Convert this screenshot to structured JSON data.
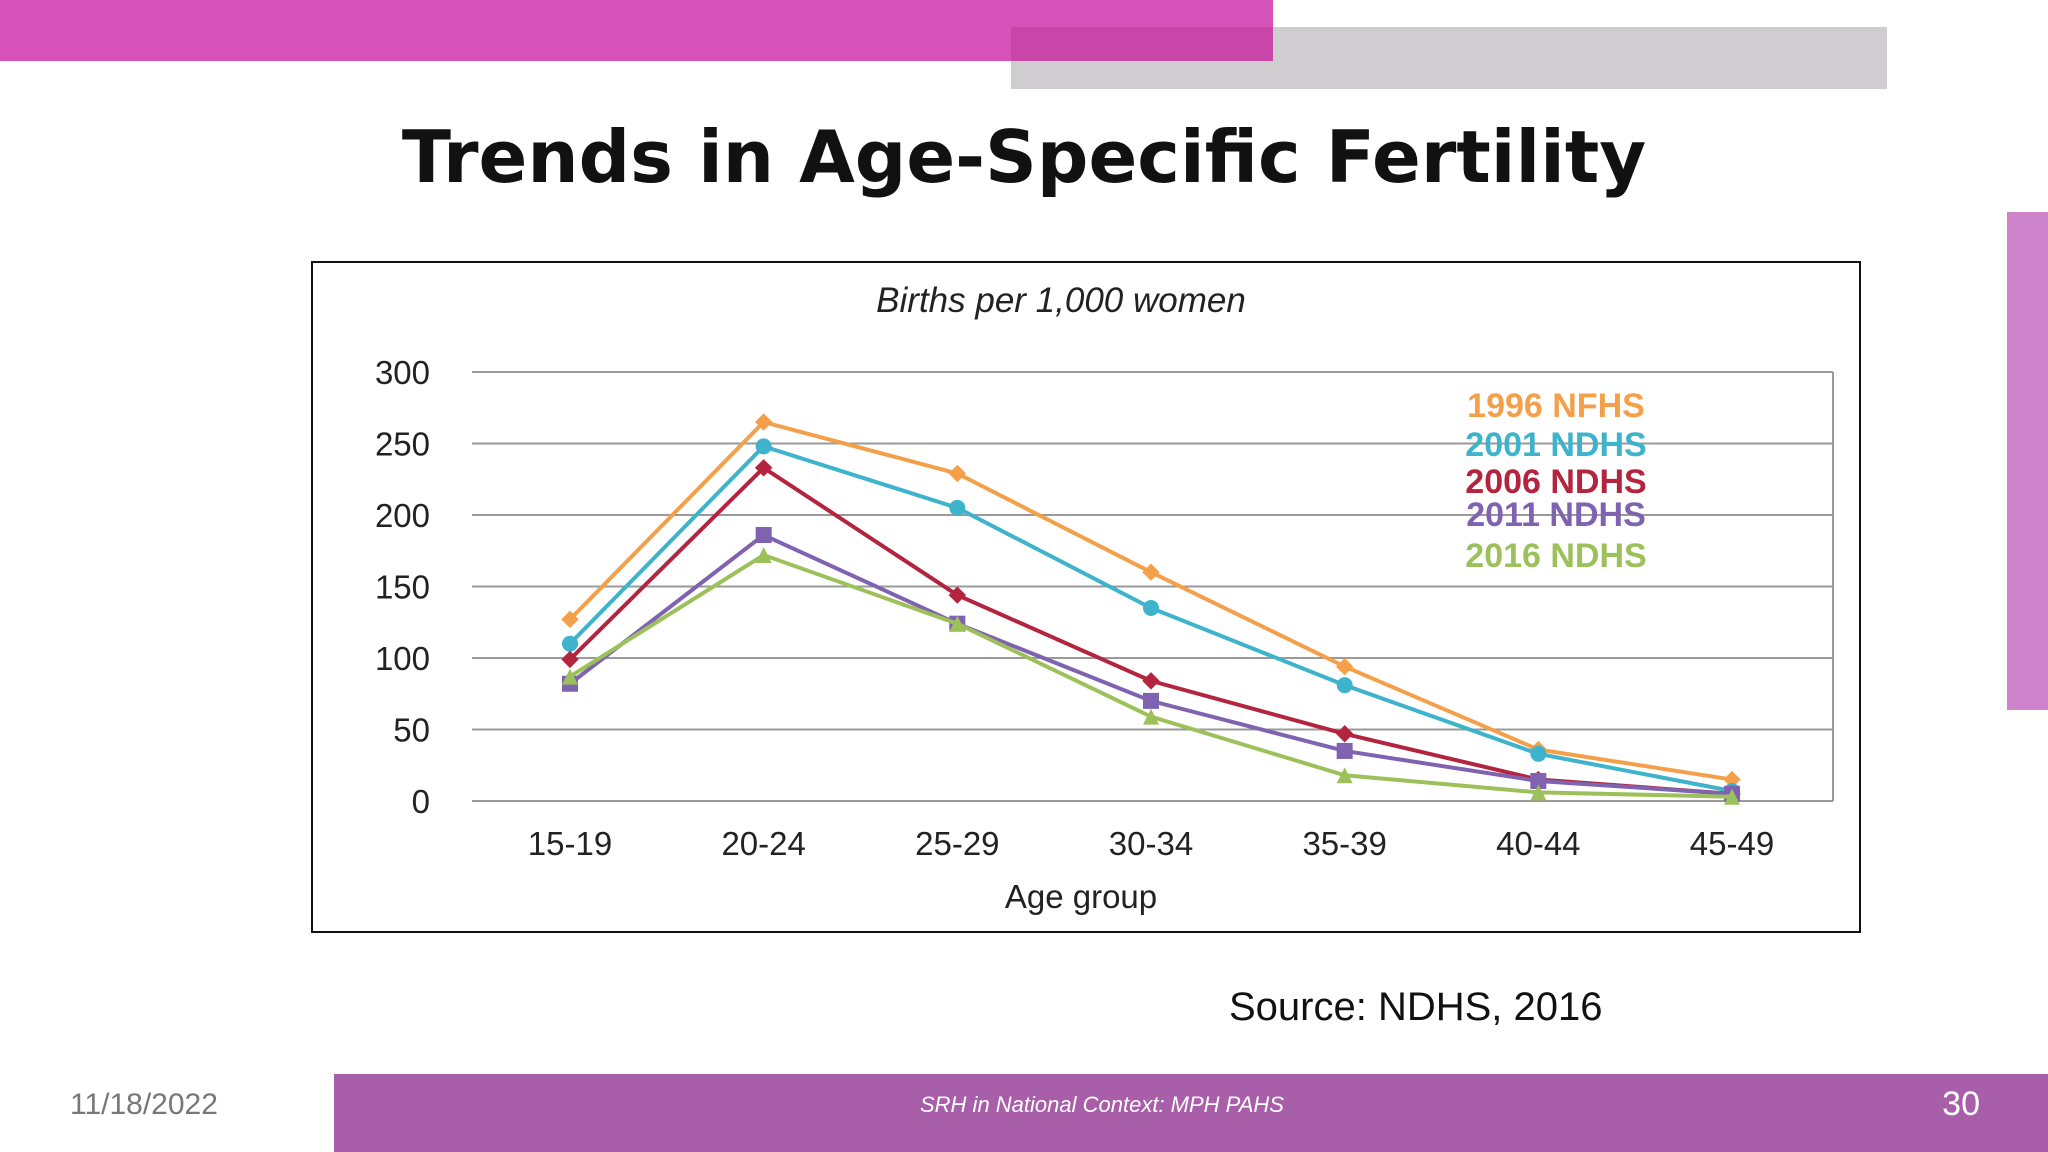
{
  "slide": {
    "title": "Trends in Age-Specific Fertility",
    "source": "Source:  NDHS, 2016",
    "footer": "SRH in National Context: MPH PAHS",
    "date": "11/18/2022",
    "page_number": "30",
    "colors": {
      "accent_pink": "#d752b8",
      "gray_bar": "#cfcdcf",
      "footer_purple": "#a95ea9",
      "side_bar": "#cd84cb"
    }
  },
  "chart_data": {
    "type": "line",
    "title": "Births per 1,000 women",
    "xlabel": "Age group",
    "ylabel": "",
    "categories": [
      "15-19",
      "20-24",
      "25-29",
      "30-34",
      "35-39",
      "40-44",
      "45-49"
    ],
    "ylim": [
      0,
      300
    ],
    "yticks": [
      0,
      50,
      100,
      150,
      200,
      250,
      300
    ],
    "grid": true,
    "legend_position": "top-right",
    "series": [
      {
        "name": "1996 NFHS",
        "color": "#f4a04a",
        "marker": "diamond",
        "values": [
          127,
          265,
          229,
          160,
          94,
          36,
          15
        ]
      },
      {
        "name": "2001 NDHS",
        "color": "#3db3cc",
        "marker": "circle",
        "values": [
          110,
          248,
          205,
          135,
          81,
          33,
          7
        ]
      },
      {
        "name": "2006 NDHS",
        "color": "#b3243f",
        "marker": "diamond",
        "values": [
          99,
          233,
          144,
          84,
          47,
          15,
          5
        ]
      },
      {
        "name": "2011 NDHS",
        "color": "#7f62b0",
        "marker": "square",
        "values": [
          82,
          186,
          124,
          70,
          35,
          14,
          5
        ]
      },
      {
        "name": "2016 NDHS",
        "color": "#9dc15a",
        "marker": "triangle",
        "values": [
          87,
          172,
          124,
          59,
          18,
          6,
          3
        ]
      }
    ]
  }
}
